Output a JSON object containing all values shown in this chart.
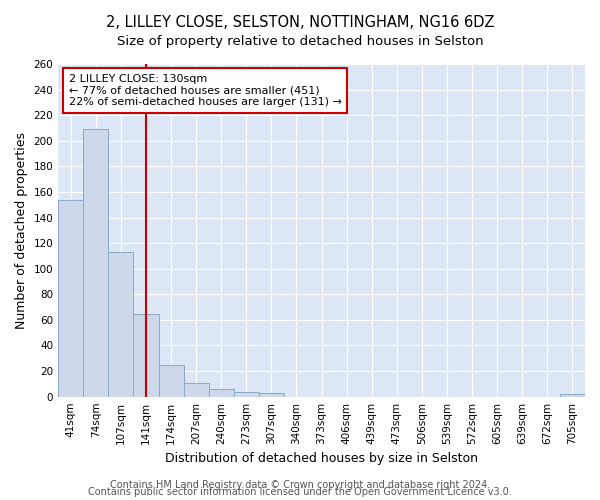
{
  "title": "2, LILLEY CLOSE, SELSTON, NOTTINGHAM, NG16 6DZ",
  "subtitle": "Size of property relative to detached houses in Selston",
  "xlabel": "Distribution of detached houses by size in Selston",
  "ylabel": "Number of detached properties",
  "bar_labels": [
    "41sqm",
    "74sqm",
    "107sqm",
    "141sqm",
    "174sqm",
    "207sqm",
    "240sqm",
    "273sqm",
    "307sqm",
    "340sqm",
    "373sqm",
    "406sqm",
    "439sqm",
    "473sqm",
    "506sqm",
    "539sqm",
    "572sqm",
    "605sqm",
    "639sqm",
    "672sqm",
    "705sqm"
  ],
  "bar_values": [
    154,
    209,
    113,
    65,
    25,
    11,
    6,
    4,
    3,
    0,
    0,
    0,
    0,
    0,
    0,
    0,
    0,
    0,
    0,
    0,
    2
  ],
  "bar_color": "#cdd9ea",
  "bar_edge_color": "#8baac8",
  "ylim": [
    0,
    260
  ],
  "yticks": [
    0,
    20,
    40,
    60,
    80,
    100,
    120,
    140,
    160,
    180,
    200,
    220,
    240,
    260
  ],
  "vline_x": 3.0,
  "vline_color": "#cc0000",
  "annotation_line1": "2 LILLEY CLOSE: 130sqm",
  "annotation_line2": "← 77% of detached houses are smaller (451)",
  "annotation_line3": "22% of semi-detached houses are larger (131) →",
  "annotation_box_color": "#ffffff",
  "annotation_box_edge": "#cc0000",
  "footer_line1": "Contains HM Land Registry data © Crown copyright and database right 2024.",
  "footer_line2": "Contains public sector information licensed under the Open Government Licence v3.0.",
  "fig_bg_color": "#ffffff",
  "plot_bg_color": "#dce6f5",
  "grid_color": "#ffffff",
  "title_fontsize": 10.5,
  "subtitle_fontsize": 9.5,
  "axis_label_fontsize": 9,
  "tick_fontsize": 7.5,
  "annotation_fontsize": 8,
  "footer_fontsize": 7
}
